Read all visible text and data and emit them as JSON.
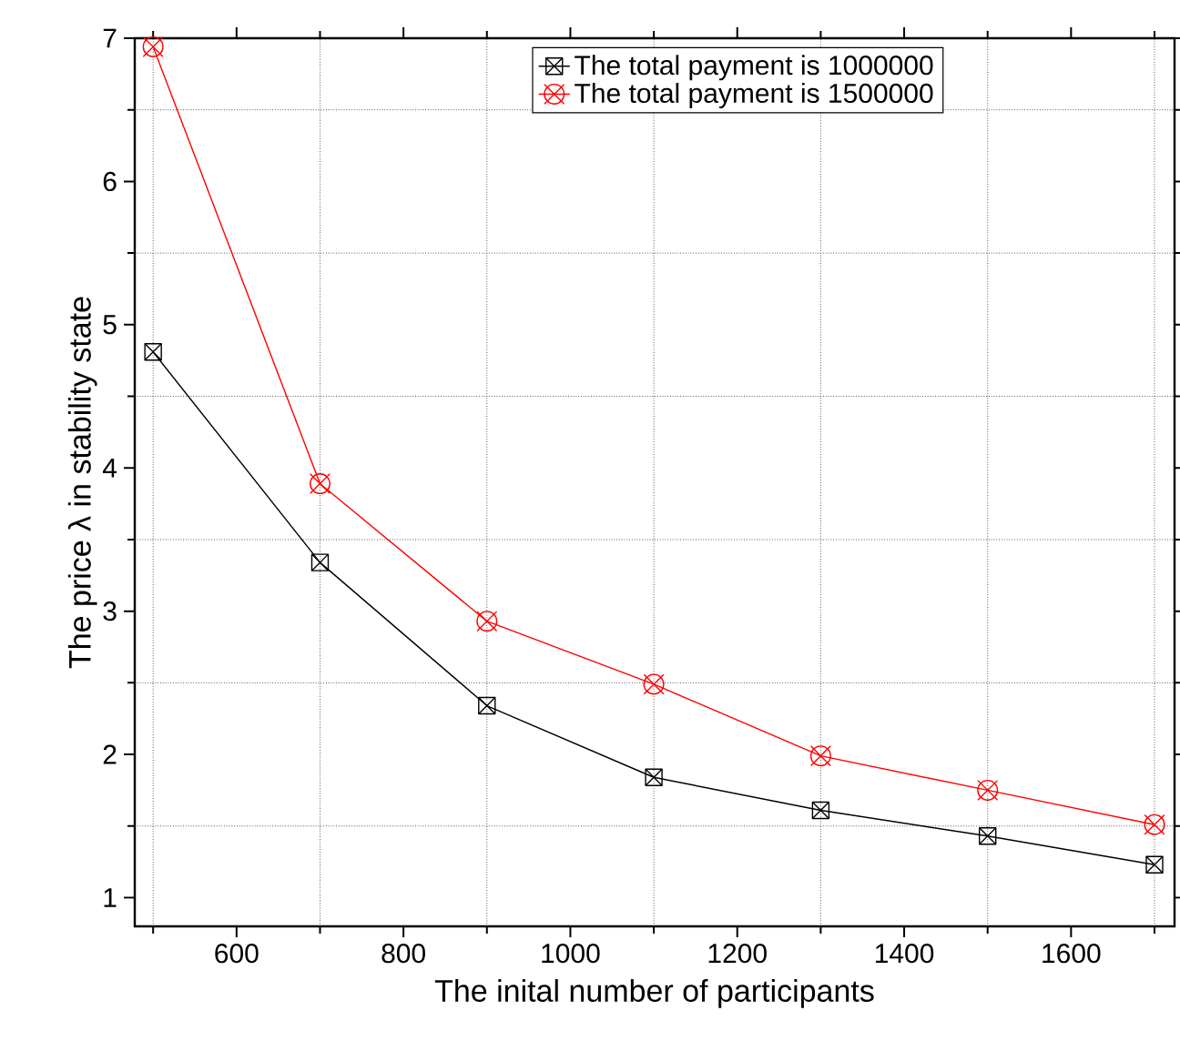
{
  "chart_data": {
    "type": "line",
    "xlabel": "The inital number of participants",
    "ylabel": "The price λ in stability state",
    "x": [
      500,
      700,
      900,
      1100,
      1300,
      1500,
      1700
    ],
    "series": [
      {
        "name": "The total payment is 1000000",
        "color": "#000000",
        "marker": "square",
        "values": [
          4.81,
          3.34,
          2.34,
          1.84,
          1.61,
          1.43,
          1.23
        ]
      },
      {
        "name": "The total payment is 1500000",
        "color": "#ff0000",
        "marker": "circle",
        "values": [
          6.94,
          3.89,
          2.93,
          2.49,
          1.99,
          1.75,
          1.51
        ]
      }
    ],
    "xlim": [
      478,
      1724
    ],
    "ylim": [
      0.8,
      7
    ],
    "xticks": [
      {
        "value": 500,
        "label": null
      },
      600,
      {
        "value": 700,
        "label": null
      },
      800,
      {
        "value": 900,
        "label": null
      },
      1000,
      {
        "value": 1100,
        "label": null
      },
      1200,
      {
        "value": 1300,
        "label": null
      },
      1400,
      {
        "value": 1500,
        "label": null
      },
      1600,
      {
        "value": 1700,
        "label": null
      }
    ],
    "yticks": [
      1,
      {
        "value": 1.5,
        "label": null
      },
      2,
      {
        "value": 2.5,
        "label": null
      },
      3,
      {
        "value": 3.5,
        "label": null
      },
      4,
      {
        "value": 4.5,
        "label": null
      },
      5,
      {
        "value": 5.5,
        "label": null
      },
      6,
      {
        "value": 6.5,
        "label": null
      },
      7
    ],
    "grid": true,
    "legend": "top right",
    "line_style": "solid"
  }
}
